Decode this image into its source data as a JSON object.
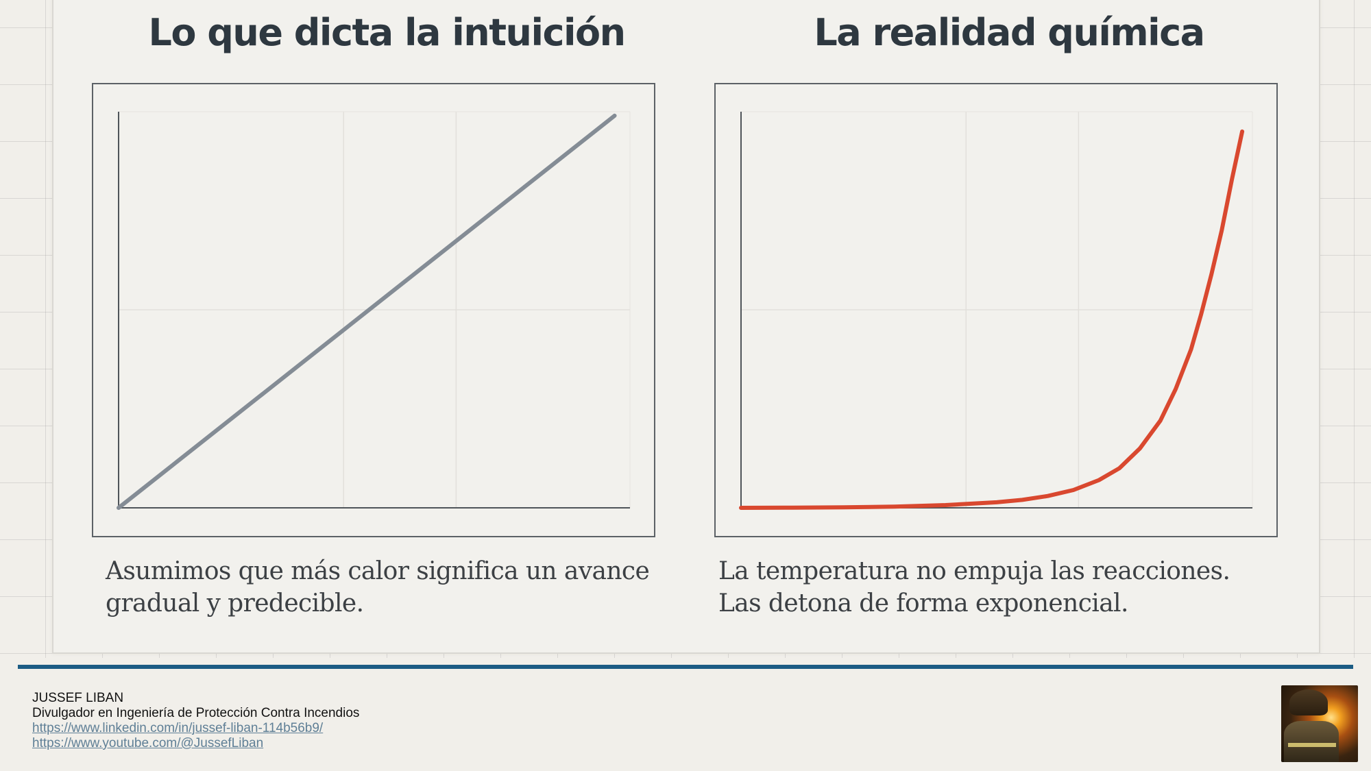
{
  "left_panel": {
    "title": "Lo que dicta la intuición",
    "caption_line1": "Asumimos que más calor significa un avance",
    "caption_line2": "gradual y predecible."
  },
  "right_panel": {
    "title": "La realidad química",
    "caption_line1": "La temperatura no empuja las reacciones.",
    "caption_line2": "Las detona de forma exponencial."
  },
  "footer": {
    "name": "JUSSEF LIBAN",
    "role": "Divulgador en Ingeniería de Protección Contra Incendios",
    "linkedin": "https://www.linkedin.com/in/jussef-liban-114b56b9/",
    "youtube": "https://www.youtube.com/@JussefLiban"
  },
  "chart_data": [
    {
      "type": "line",
      "title": "Lo que dicta la intuición",
      "xlabel": "",
      "ylabel": "",
      "xlim": [
        0,
        1
      ],
      "ylim": [
        0,
        1
      ],
      "grid": true,
      "color": "#848c95",
      "series": [
        {
          "x": [
            0,
            0.97
          ],
          "y": [
            0,
            0.99
          ]
        }
      ]
    },
    {
      "type": "line",
      "title": "La realidad química",
      "xlabel": "",
      "ylabel": "",
      "xlim": [
        0,
        1
      ],
      "ylim": [
        0,
        1
      ],
      "grid": true,
      "color": "#d9482f",
      "series": [
        {
          "x": [
            0,
            0.1,
            0.2,
            0.3,
            0.4,
            0.5,
            0.55,
            0.6,
            0.65,
            0.7,
            0.74,
            0.78,
            0.82,
            0.85,
            0.88,
            0.9,
            0.92,
            0.94,
            0.96,
            0.98
          ],
          "y": [
            0,
            0.0005,
            0.0012,
            0.003,
            0.007,
            0.014,
            0.02,
            0.03,
            0.045,
            0.07,
            0.1,
            0.15,
            0.22,
            0.3,
            0.4,
            0.49,
            0.59,
            0.7,
            0.83,
            0.95
          ]
        }
      ]
    }
  ]
}
